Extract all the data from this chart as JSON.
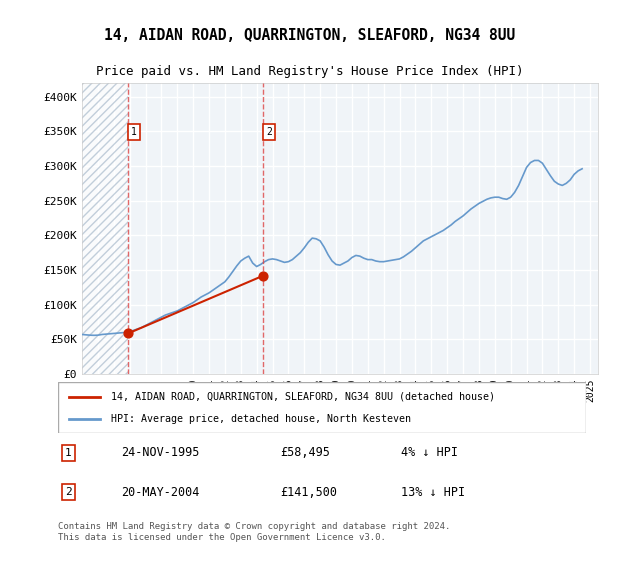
{
  "title": "14, AIDAN ROAD, QUARRINGTON, SLEAFORD, NG34 8UU",
  "subtitle": "Price paid vs. HM Land Registry's House Price Index (HPI)",
  "ylabel": "",
  "xlim_start": 1993.0,
  "xlim_end": 2025.5,
  "ylim": [
    0,
    420000
  ],
  "yticks": [
    0,
    50000,
    100000,
    150000,
    200000,
    250000,
    300000,
    350000,
    400000
  ],
  "ytick_labels": [
    "£0",
    "£50K",
    "£100K",
    "£150K",
    "£200K",
    "£250K",
    "£300K",
    "£350K",
    "£400K"
  ],
  "xticks": [
    1993,
    1994,
    1995,
    1996,
    1997,
    1998,
    1999,
    2000,
    2001,
    2002,
    2003,
    2004,
    2005,
    2006,
    2007,
    2008,
    2009,
    2010,
    2011,
    2012,
    2013,
    2014,
    2015,
    2016,
    2017,
    2018,
    2019,
    2020,
    2021,
    2022,
    2023,
    2024,
    2025
  ],
  "hpi_color": "#6699cc",
  "price_color": "#cc2200",
  "hatch_color": "#bbccdd",
  "bg_color": "#ffffff",
  "plot_bg": "#f0f4f8",
  "grid_color": "#ffffff",
  "sale1_x": 1995.9,
  "sale1_y": 58495,
  "sale1_label": "1",
  "sale1_date": "24-NOV-1995",
  "sale1_price": "£58,495",
  "sale1_hpi": "4% ↓ HPI",
  "sale2_x": 2004.38,
  "sale2_y": 141500,
  "sale2_label": "2",
  "sale2_date": "20-MAY-2004",
  "sale2_price": "£141,500",
  "sale2_hpi": "13% ↓ HPI",
  "legend_line1": "14, AIDAN ROAD, QUARRINGTON, SLEAFORD, NG34 8UU (detached house)",
  "legend_line2": "HPI: Average price, detached house, North Kesteven",
  "footer": "Contains HM Land Registry data © Crown copyright and database right 2024.\nThis data is licensed under the Open Government Licence v3.0.",
  "hpi_data_x": [
    1993.0,
    1993.25,
    1993.5,
    1993.75,
    1994.0,
    1994.25,
    1994.5,
    1994.75,
    1995.0,
    1995.25,
    1995.5,
    1995.75,
    1996.0,
    1996.25,
    1996.5,
    1996.75,
    1997.0,
    1997.25,
    1997.5,
    1997.75,
    1998.0,
    1998.25,
    1998.5,
    1998.75,
    1999.0,
    1999.25,
    1999.5,
    1999.75,
    2000.0,
    2000.25,
    2000.5,
    2000.75,
    2001.0,
    2001.25,
    2001.5,
    2001.75,
    2002.0,
    2002.25,
    2002.5,
    2002.75,
    2003.0,
    2003.25,
    2003.5,
    2003.75,
    2004.0,
    2004.25,
    2004.5,
    2004.75,
    2005.0,
    2005.25,
    2005.5,
    2005.75,
    2006.0,
    2006.25,
    2006.5,
    2006.75,
    2007.0,
    2007.25,
    2007.5,
    2007.75,
    2008.0,
    2008.25,
    2008.5,
    2008.75,
    2009.0,
    2009.25,
    2009.5,
    2009.75,
    2010.0,
    2010.25,
    2010.5,
    2010.75,
    2011.0,
    2011.25,
    2011.5,
    2011.75,
    2012.0,
    2012.25,
    2012.5,
    2012.75,
    2013.0,
    2013.25,
    2013.5,
    2013.75,
    2014.0,
    2014.25,
    2014.5,
    2014.75,
    2015.0,
    2015.25,
    2015.5,
    2015.75,
    2016.0,
    2016.25,
    2016.5,
    2016.75,
    2017.0,
    2017.25,
    2017.5,
    2017.75,
    2018.0,
    2018.25,
    2018.5,
    2018.75,
    2019.0,
    2019.25,
    2019.5,
    2019.75,
    2020.0,
    2020.25,
    2020.5,
    2020.75,
    2021.0,
    2021.25,
    2021.5,
    2021.75,
    2022.0,
    2022.25,
    2022.5,
    2022.75,
    2023.0,
    2023.25,
    2023.5,
    2023.75,
    2024.0,
    2024.25,
    2024.5
  ],
  "hpi_data_y": [
    57000,
    56500,
    56000,
    55800,
    56000,
    57000,
    57500,
    58000,
    58500,
    59000,
    59500,
    60000,
    61000,
    63000,
    65000,
    67000,
    70000,
    73000,
    76000,
    79000,
    82000,
    85000,
    87000,
    89000,
    91000,
    94000,
    97000,
    100000,
    103000,
    107000,
    111000,
    114000,
    117000,
    121000,
    125000,
    129000,
    133000,
    140000,
    148000,
    156000,
    163000,
    167000,
    170000,
    160000,
    155000,
    158000,
    162000,
    165000,
    166000,
    165000,
    163000,
    161000,
    162000,
    165000,
    170000,
    175000,
    182000,
    190000,
    196000,
    195000,
    192000,
    183000,
    172000,
    163000,
    158000,
    157000,
    160000,
    163000,
    168000,
    171000,
    170000,
    167000,
    165000,
    165000,
    163000,
    162000,
    162000,
    163000,
    164000,
    165000,
    166000,
    169000,
    173000,
    177000,
    182000,
    187000,
    192000,
    195000,
    198000,
    201000,
    204000,
    207000,
    211000,
    215000,
    220000,
    224000,
    228000,
    233000,
    238000,
    242000,
    246000,
    249000,
    252000,
    254000,
    255000,
    255000,
    253000,
    252000,
    255000,
    262000,
    272000,
    285000,
    298000,
    305000,
    308000,
    308000,
    304000,
    295000,
    286000,
    278000,
    274000,
    272000,
    275000,
    280000,
    288000,
    293000,
    296000
  ],
  "price_data_x": [
    1995.9,
    2004.38
  ],
  "price_data_y": [
    58495,
    141500
  ]
}
